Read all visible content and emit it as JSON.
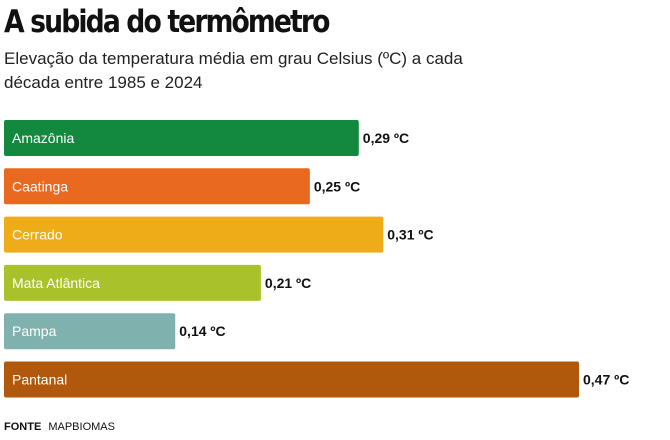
{
  "chart_data": {
    "type": "bar",
    "orientation": "horizontal",
    "title": "A subida do termômetro",
    "subtitle": "Elevação da temperatura média em grau Celsius (ºC) a cada década entre 1985 e 2024",
    "categories": [
      "Amazônia",
      "Caatinga",
      "Cerrado",
      "Mata Atlântica",
      "Pampa",
      "Pantanal"
    ],
    "values": [
      0.29,
      0.25,
      0.31,
      0.21,
      0.14,
      0.47
    ],
    "value_labels": [
      "0,29 ºC",
      "0,25 ºC",
      "0,31 ºC",
      "0,21 ºC",
      "0,14 ºC",
      "0,47 ºC"
    ],
    "colors": [
      "#12893f",
      "#e8691f",
      "#eeac19",
      "#a9c22c",
      "#7fb2ae",
      "#b0580c"
    ],
    "xlim": [
      0,
      0.47
    ],
    "grid": false,
    "legend": "none"
  },
  "source": {
    "label": "FONTE",
    "value": "MAPBIOMAS"
  }
}
